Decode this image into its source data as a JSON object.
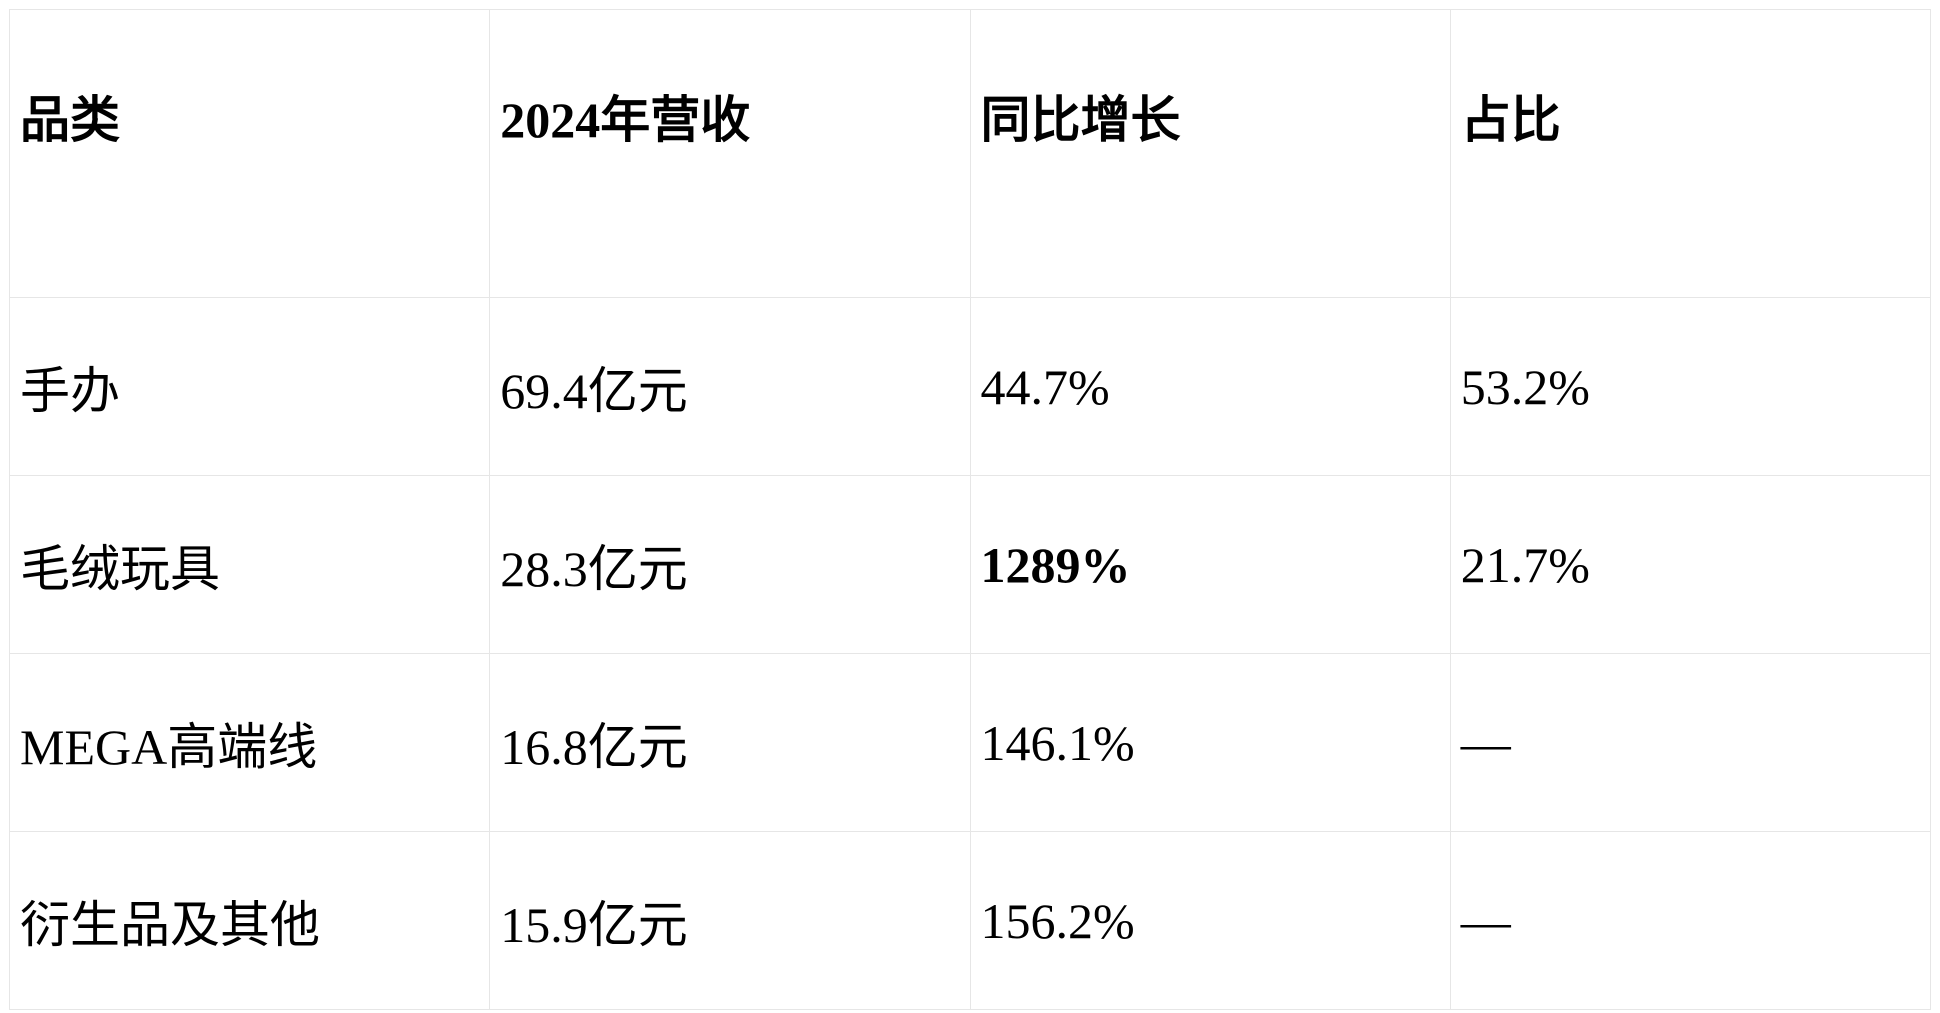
{
  "table": {
    "headers": [
      "品类",
      "2024年营收",
      "同比增长",
      "占比"
    ],
    "rows": [
      [
        "手办",
        "69.4亿元",
        "44.7%",
        "53.2%"
      ],
      [
        "毛绒玩具",
        "28.3亿元",
        "1289%",
        "21.7%"
      ],
      [
        "MEGA高端线",
        "16.8亿元",
        "146.1%",
        "—"
      ],
      [
        "衍生品及其他",
        "15.9亿元",
        "156.2%",
        "—"
      ]
    ]
  }
}
